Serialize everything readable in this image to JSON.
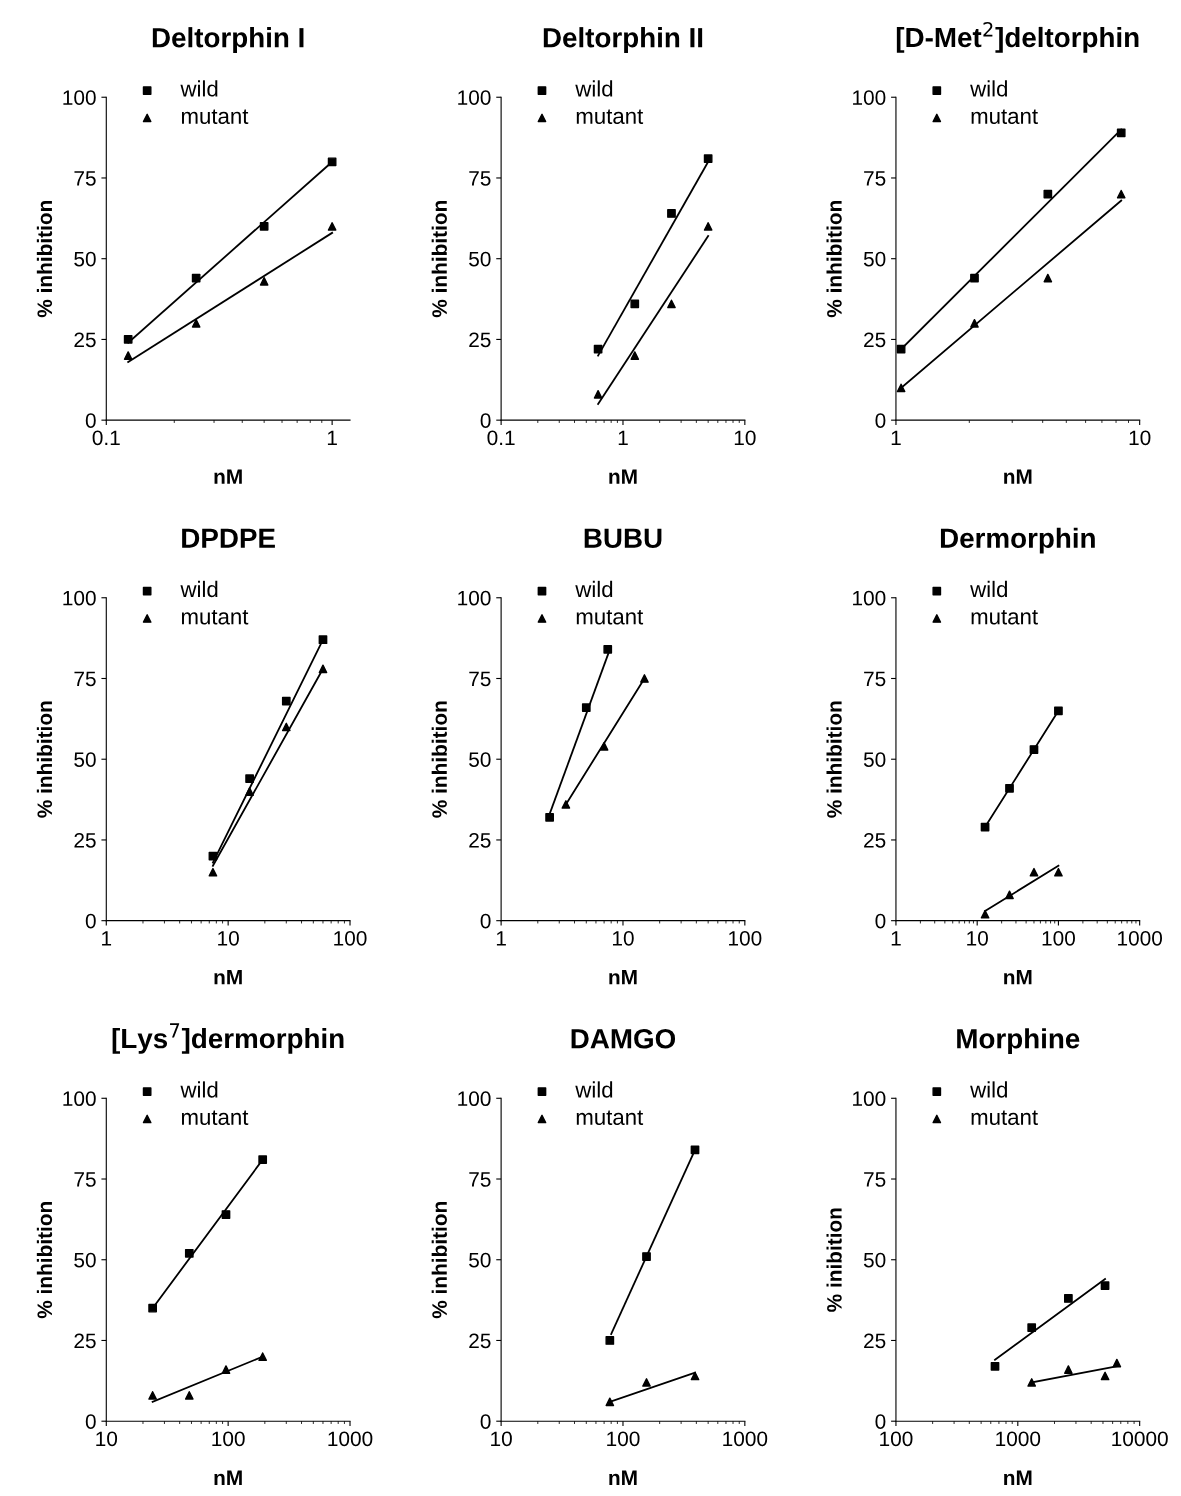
{
  "chart_data": [
    {
      "type": "scatter",
      "title": "Deltorphin I",
      "xlabel": "nM",
      "ylabel": "% inhibition",
      "log": "x",
      "xlim": [
        0.1,
        1.2
      ],
      "xticks": [
        0.1,
        1
      ],
      "ylim": [
        0,
        100
      ],
      "yticks": [
        0,
        25,
        50,
        75,
        100
      ],
      "legend": "top left",
      "grid": false,
      "series": [
        {
          "name": "wild",
          "color": "#000000",
          "marker": "square",
          "x": [
            0.125,
            0.25,
            0.5,
            1
          ],
          "values": [
            25,
            44,
            60,
            80
          ]
        },
        {
          "name": "mutant",
          "color": "#000000",
          "marker": "triangle",
          "x": [
            0.125,
            0.25,
            0.5,
            1
          ],
          "values": [
            20,
            30,
            43,
            60
          ]
        },
        {
          "type": "line",
          "color": "#000000",
          "x": [
            0.125,
            1
          ],
          "values": [
            24,
            80
          ]
        },
        {
          "type": "line",
          "color": "#000000",
          "x": [
            0.125,
            1
          ],
          "values": [
            18,
            58
          ]
        }
      ]
    },
    {
      "type": "scatter",
      "title": "Deltorphin II",
      "xlabel": "nM",
      "ylabel": "% inhibition",
      "log": "x",
      "xlim": [
        0.1,
        10
      ],
      "xticks": [
        0.1,
        1,
        10
      ],
      "ylim": [
        0,
        100
      ],
      "yticks": [
        0,
        25,
        50,
        75,
        100
      ],
      "legend": "top left",
      "grid": false,
      "series": [
        {
          "name": "wild",
          "color": "#000000",
          "marker": "square",
          "x": [
            0.625,
            1.25,
            2.5,
            5
          ],
          "values": [
            22,
            36,
            64,
            81
          ]
        },
        {
          "name": "mutant",
          "color": "#000000",
          "marker": "triangle",
          "x": [
            0.625,
            1.25,
            2.5,
            5
          ],
          "values": [
            8,
            20,
            36,
            60
          ]
        },
        {
          "type": "line",
          "color": "#000000",
          "x": [
            0.625,
            5
          ],
          "values": [
            20,
            80
          ]
        },
        {
          "type": "line",
          "color": "#000000",
          "x": [
            0.625,
            5
          ],
          "values": [
            5,
            57
          ]
        }
      ]
    },
    {
      "type": "scatter",
      "title": "[D-Met$^{2}$]deltorphin",
      "xlabel": "nM",
      "ylabel": "% inhibition",
      "log": "x",
      "xlim": [
        1,
        10
      ],
      "xticks": [
        1,
        10
      ],
      "ylim": [
        0,
        100
      ],
      "yticks": [
        0,
        25,
        50,
        75,
        100
      ],
      "legend": "top left",
      "grid": false,
      "series": [
        {
          "name": "wild",
          "color": "#000000",
          "marker": "square",
          "x": [
            1.05,
            2.1,
            4.2,
            8.4
          ],
          "values": [
            22,
            44,
            70,
            89
          ]
        },
        {
          "name": "mutant",
          "color": "#000000",
          "marker": "triangle",
          "x": [
            1.05,
            2.1,
            4.2,
            8.4
          ],
          "values": [
            10,
            30,
            44,
            70
          ]
        },
        {
          "type": "line",
          "color": "#000000",
          "x": [
            1.05,
            8.4
          ],
          "values": [
            22,
            90
          ]
        },
        {
          "type": "line",
          "color": "#000000",
          "x": [
            1.05,
            8.4
          ],
          "values": [
            10,
            68
          ]
        }
      ]
    },
    {
      "type": "scatter",
      "title": "DPDPE",
      "xlabel": "nM",
      "ylabel": "% inhibition",
      "log": "x",
      "xlim": [
        1,
        100
      ],
      "xticks": [
        1,
        10,
        100
      ],
      "ylim": [
        0,
        100
      ],
      "yticks": [
        0,
        25,
        50,
        75,
        100
      ],
      "legend": "top left",
      "grid": false,
      "series": [
        {
          "name": "wild",
          "color": "#000000",
          "marker": "square",
          "x": [
            7.5,
            15,
            30,
            60
          ],
          "values": [
            20,
            44,
            68,
            87
          ]
        },
        {
          "name": "mutant",
          "color": "#000000",
          "marker": "triangle",
          "x": [
            7.5,
            15,
            30,
            60
          ],
          "values": [
            15,
            40,
            60,
            78
          ]
        },
        {
          "type": "line",
          "color": "#000000",
          "x": [
            7.5,
            60
          ],
          "values": [
            18,
            87
          ]
        },
        {
          "type": "line",
          "color": "#000000",
          "x": [
            7.5,
            60
          ],
          "values": [
            17,
            78
          ]
        }
      ]
    },
    {
      "type": "scatter",
      "title": "BUBU",
      "xlabel": "nM",
      "ylabel": "% inhibition",
      "log": "x",
      "xlim": [
        1,
        100
      ],
      "xticks": [
        1,
        10,
        100
      ],
      "ylim": [
        0,
        100
      ],
      "yticks": [
        0,
        25,
        50,
        75,
        100
      ],
      "legend": "top left",
      "grid": false,
      "series": [
        {
          "name": "wild",
          "color": "#000000",
          "marker": "square",
          "x": [
            2.5,
            5,
            7.5
          ],
          "values": [
            32,
            66,
            84
          ]
        },
        {
          "name": "mutant",
          "color": "#000000",
          "marker": "triangle",
          "x": [
            3.4,
            7,
            15
          ],
          "values": [
            36,
            54,
            75
          ]
        },
        {
          "type": "line",
          "color": "#000000",
          "x": [
            2.5,
            7.8
          ],
          "values": [
            33,
            84
          ]
        },
        {
          "type": "line",
          "color": "#000000",
          "x": [
            3.4,
            15
          ],
          "values": [
            36,
            75
          ]
        }
      ]
    },
    {
      "type": "scatter",
      "title": "Dermorphin",
      "xlabel": "nM",
      "ylabel": "% inhibition",
      "log": "x",
      "xlim": [
        1,
        1000
      ],
      "xticks": [
        1,
        10,
        100,
        1000
      ],
      "ylim": [
        0,
        100
      ],
      "yticks": [
        0,
        25,
        50,
        75,
        100
      ],
      "legend": "top left",
      "grid": false,
      "series": [
        {
          "name": "wild",
          "color": "#000000",
          "marker": "square",
          "x": [
            12.5,
            25,
            50,
            100
          ],
          "values": [
            29,
            41,
            53,
            65
          ]
        },
        {
          "name": "mutant",
          "color": "#000000",
          "marker": "triangle",
          "x": [
            12.5,
            25,
            50,
            100
          ],
          "values": [
            2,
            8,
            15,
            15
          ]
        },
        {
          "type": "line",
          "color": "#000000",
          "x": [
            12.5,
            100
          ],
          "values": [
            29,
            65
          ]
        },
        {
          "type": "line",
          "color": "#000000",
          "x": [
            12.5,
            100
          ],
          "values": [
            3,
            17
          ]
        }
      ]
    },
    {
      "type": "scatter",
      "title": "[Lys$^{7}$]dermorphin",
      "xlabel": "nM",
      "ylabel": "% inhibition",
      "log": "x",
      "xlim": [
        10,
        1000
      ],
      "xticks": [
        10,
        100,
        1000
      ],
      "ylim": [
        0,
        100
      ],
      "yticks": [
        0,
        25,
        50,
        75,
        100
      ],
      "legend": "top left",
      "grid": false,
      "series": [
        {
          "name": "wild",
          "color": "#000000",
          "marker": "square",
          "x": [
            24,
            48,
            96,
            192
          ],
          "values": [
            35,
            52,
            64,
            81
          ]
        },
        {
          "name": "mutant",
          "color": "#000000",
          "marker": "triangle",
          "x": [
            24,
            48,
            96,
            192
          ],
          "values": [
            8,
            8,
            16,
            20
          ]
        },
        {
          "type": "line",
          "color": "#000000",
          "x": [
            24,
            192
          ],
          "values": [
            35,
            81
          ]
        },
        {
          "type": "line",
          "color": "#000000",
          "x": [
            24,
            192
          ],
          "values": [
            6,
            20
          ]
        }
      ]
    },
    {
      "type": "scatter",
      "title": "DAMGO",
      "xlabel": "nM",
      "ylabel": "% inhibition",
      "log": "x",
      "xlim": [
        10,
        1000
      ],
      "xticks": [
        10,
        100,
        1000
      ],
      "ylim": [
        0,
        100
      ],
      "yticks": [
        0,
        25,
        50,
        75,
        100
      ],
      "legend": "top left",
      "grid": false,
      "series": [
        {
          "name": "wild",
          "color": "#000000",
          "marker": "square",
          "x": [
            78,
            156,
            390
          ],
          "values": [
            25,
            51,
            84
          ]
        },
        {
          "name": "mutant",
          "color": "#000000",
          "marker": "triangle",
          "x": [
            78,
            156,
            390
          ],
          "values": [
            6,
            12,
            14
          ]
        },
        {
          "type": "line",
          "color": "#000000",
          "x": [
            80,
            390
          ],
          "values": [
            27,
            84
          ]
        },
        {
          "type": "line",
          "color": "#000000",
          "x": [
            78,
            390
          ],
          "values": [
            6,
            15
          ]
        }
      ]
    },
    {
      "type": "scatter",
      "title": "Morphine",
      "xlabel": "nM",
      "ylabel": "% inibition",
      "log": "x",
      "xlim": [
        100,
        10000
      ],
      "xticks": [
        100,
        1000,
        10000
      ],
      "ylim": [
        0,
        100
      ],
      "yticks": [
        0,
        25,
        50,
        75,
        100
      ],
      "legend": "top left",
      "grid": false,
      "series": [
        {
          "name": "wild",
          "color": "#000000",
          "marker": "square",
          "x": [
            650,
            1300,
            2600,
            5200
          ],
          "values": [
            17,
            29,
            38,
            42
          ]
        },
        {
          "name": "mutant",
          "color": "#000000",
          "marker": "triangle",
          "x": [
            1300,
            2600,
            5200,
            6500
          ],
          "values": [
            12,
            16,
            14,
            18
          ]
        },
        {
          "type": "line",
          "color": "#000000",
          "x": [
            650,
            5200
          ],
          "values": [
            19,
            44
          ]
        },
        {
          "type": "line",
          "color": "#000000",
          "x": [
            1300,
            6500
          ],
          "values": [
            12,
            17
          ]
        }
      ]
    }
  ]
}
